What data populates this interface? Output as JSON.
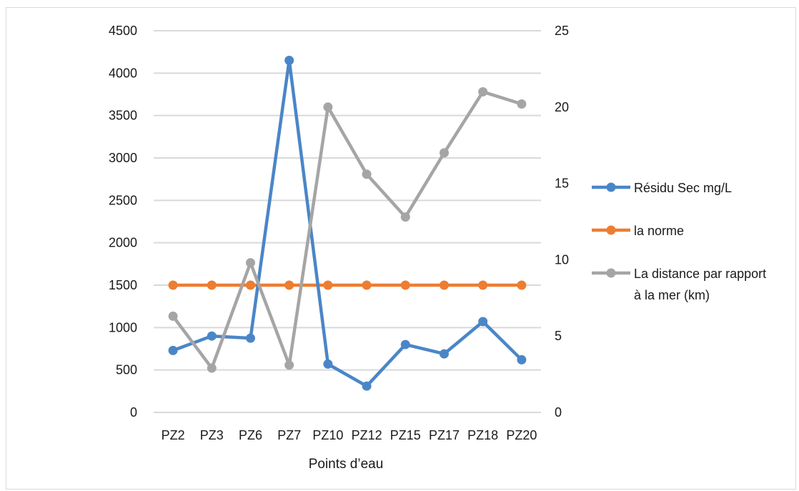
{
  "chart_data": {
    "type": "line",
    "xlabel": "Points d’eau",
    "categories": [
      "PZ2",
      "PZ3",
      "PZ6",
      "PZ7",
      "PZ10",
      "PZ12",
      "PZ15",
      "PZ17",
      "PZ18",
      "PZ20"
    ],
    "y_left": {
      "min": 0,
      "max": 4500,
      "ticks": [
        "0",
        "500",
        "1000",
        "1500",
        "2000",
        "2500",
        "3000",
        "3500",
        "4000",
        "4500"
      ]
    },
    "y_right": {
      "min": 0,
      "max": 25,
      "ticks": [
        "0",
        "5",
        "10",
        "15",
        "20",
        "25"
      ]
    },
    "grid": true,
    "legend_position": "right",
    "series": [
      {
        "name": "Résidu Sec mg/L",
        "axis": "left",
        "color": "#4a86c7",
        "values": [
          730,
          900,
          875,
          4150,
          570,
          310,
          800,
          690,
          1070,
          620
        ]
      },
      {
        "name": "la norme",
        "axis": "left",
        "color": "#ed7d31",
        "values": [
          1500,
          1500,
          1500,
          1500,
          1500,
          1500,
          1500,
          1500,
          1500,
          1500
        ]
      },
      {
        "name": "La distance par rapport à la mer (km)",
        "name_lines": [
          "La distance par rapport",
          "à la mer (km)"
        ],
        "axis": "right",
        "color": "#a5a5a5",
        "values": [
          6.3,
          2.9,
          9.8,
          3.1,
          20.0,
          15.6,
          12.8,
          17.0,
          21.0,
          20.2
        ]
      }
    ]
  }
}
